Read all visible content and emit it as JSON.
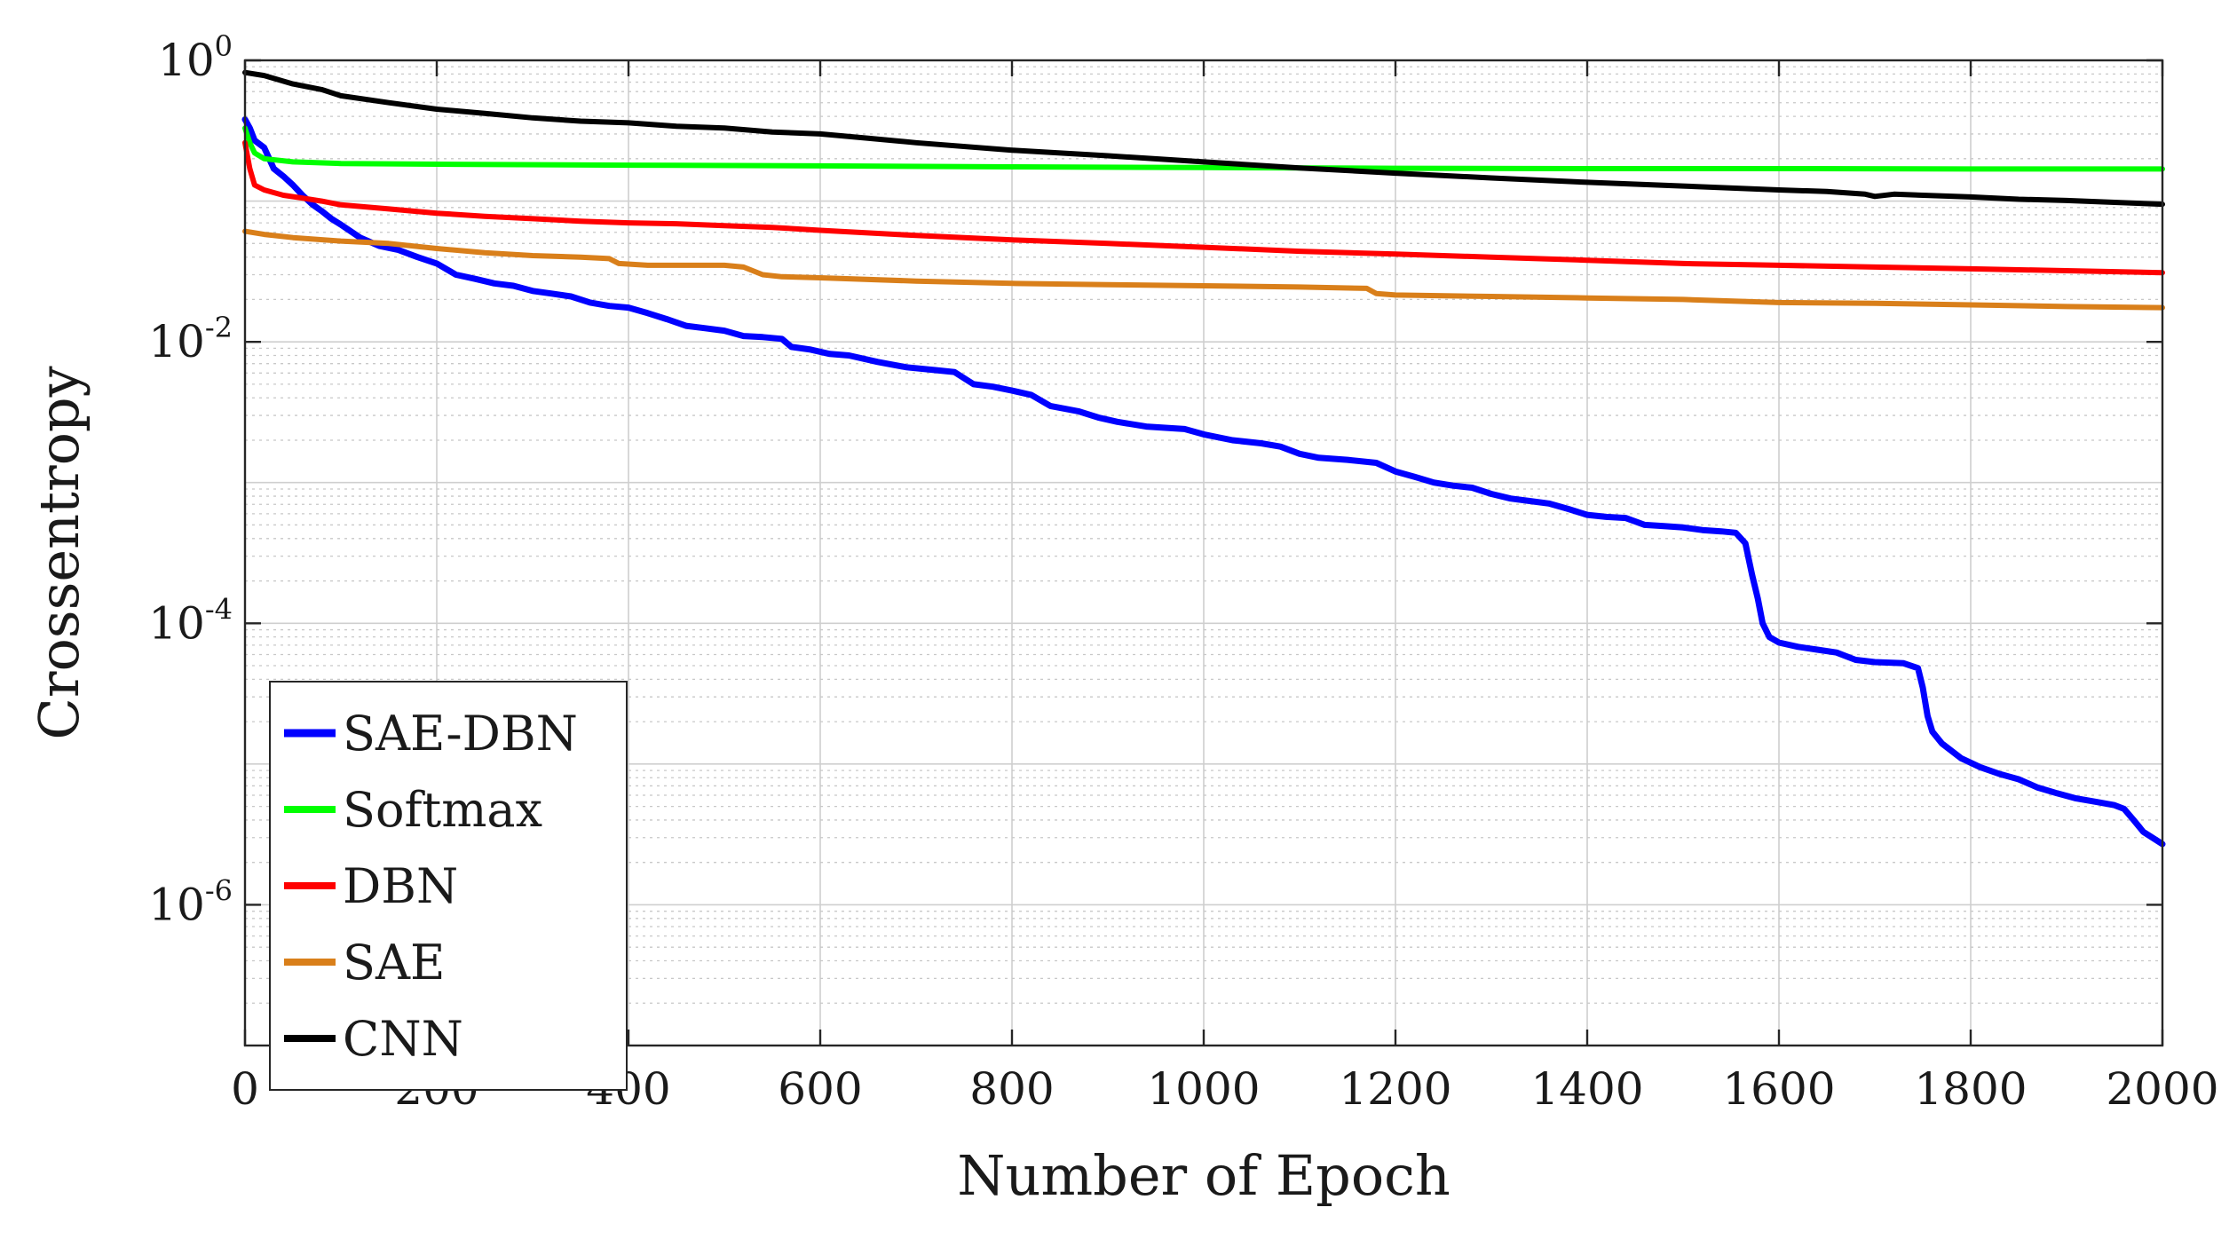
{
  "chart_data": {
    "type": "line",
    "title": "",
    "xlabel": "Number of Epoch",
    "ylabel": "Crossentropy",
    "xlim": [
      0,
      2000
    ],
    "ylim": [
      1e-07,
      1
    ],
    "yscale": "log",
    "grid": true,
    "legend_position": "bottom-left",
    "xticks": [
      0,
      200,
      400,
      600,
      800,
      1000,
      1200,
      1400,
      1600,
      1800,
      2000
    ],
    "xtick_labels": [
      "0",
      "200",
      "400",
      "600",
      "800",
      "1000",
      "1200",
      "1400",
      "1600",
      "1800",
      "2000"
    ],
    "yticks": [
      {
        "value": 1,
        "base": "10",
        "exp": "0"
      },
      {
        "value": 0.01,
        "base": "10",
        "exp": "-2"
      },
      {
        "value": 0.0001,
        "base": "10",
        "exp": "-4"
      },
      {
        "value": 1e-06,
        "base": "10",
        "exp": "-6"
      }
    ],
    "series": [
      {
        "name": "SAE-DBN",
        "color": "#0000ff",
        "width": 7,
        "points": [
          [
            0,
            0.38
          ],
          [
            5,
            0.33
          ],
          [
            10,
            0.27
          ],
          [
            20,
            0.24
          ],
          [
            30,
            0.17
          ],
          [
            40,
            0.15
          ],
          [
            50,
            0.13
          ],
          [
            60,
            0.11
          ],
          [
            70,
            0.095
          ],
          [
            80,
            0.085
          ],
          [
            90,
            0.075
          ],
          [
            100,
            0.068
          ],
          [
            120,
            0.055
          ],
          [
            140,
            0.048
          ],
          [
            160,
            0.045
          ],
          [
            180,
            0.04
          ],
          [
            200,
            0.036
          ],
          [
            220,
            0.03
          ],
          [
            240,
            0.028
          ],
          [
            260,
            0.026
          ],
          [
            280,
            0.025
          ],
          [
            300,
            0.023
          ],
          [
            320,
            0.022
          ],
          [
            340,
            0.021
          ],
          [
            360,
            0.019
          ],
          [
            380,
            0.018
          ],
          [
            400,
            0.0175
          ],
          [
            420,
            0.016
          ],
          [
            440,
            0.0145
          ],
          [
            460,
            0.013
          ],
          [
            480,
            0.0125
          ],
          [
            500,
            0.012
          ],
          [
            520,
            0.011
          ],
          [
            540,
            0.0108
          ],
          [
            560,
            0.0105
          ],
          [
            570,
            0.0092
          ],
          [
            590,
            0.0088
          ],
          [
            610,
            0.0082
          ],
          [
            630,
            0.008
          ],
          [
            660,
            0.0072
          ],
          [
            690,
            0.0066
          ],
          [
            720,
            0.0063
          ],
          [
            740,
            0.0061
          ],
          [
            760,
            0.005
          ],
          [
            780,
            0.0048
          ],
          [
            800,
            0.0045
          ],
          [
            820,
            0.0042
          ],
          [
            840,
            0.0035
          ],
          [
            870,
            0.0032
          ],
          [
            890,
            0.0029
          ],
          [
            910,
            0.0027
          ],
          [
            940,
            0.0025
          ],
          [
            980,
            0.0024
          ],
          [
            1000,
            0.0022
          ],
          [
            1030,
            0.002
          ],
          [
            1060,
            0.0019
          ],
          [
            1080,
            0.0018
          ],
          [
            1100,
            0.0016
          ],
          [
            1120,
            0.0015
          ],
          [
            1150,
            0.00145
          ],
          [
            1180,
            0.00138
          ],
          [
            1200,
            0.0012
          ],
          [
            1220,
            0.0011
          ],
          [
            1240,
            0.001
          ],
          [
            1260,
            0.00095
          ],
          [
            1280,
            0.00092
          ],
          [
            1300,
            0.00083
          ],
          [
            1320,
            0.00077
          ],
          [
            1340,
            0.00074
          ],
          [
            1360,
            0.00071
          ],
          [
            1380,
            0.00065
          ],
          [
            1400,
            0.00059
          ],
          [
            1420,
            0.00057
          ],
          [
            1440,
            0.00056
          ],
          [
            1460,
            0.0005
          ],
          [
            1480,
            0.00049
          ],
          [
            1500,
            0.00048
          ],
          [
            1520,
            0.00046
          ],
          [
            1540,
            0.00045
          ],
          [
            1555,
            0.00044
          ],
          [
            1565,
            0.00037
          ],
          [
            1572,
            0.00022
          ],
          [
            1578,
            0.00015
          ],
          [
            1583,
            0.0001
          ],
          [
            1590,
            8e-05
          ],
          [
            1600,
            7.3e-05
          ],
          [
            1620,
            6.8e-05
          ],
          [
            1640,
            6.5e-05
          ],
          [
            1660,
            6.2e-05
          ],
          [
            1680,
            5.5e-05
          ],
          [
            1700,
            5.3e-05
          ],
          [
            1730,
            5.2e-05
          ],
          [
            1745,
            4.8e-05
          ],
          [
            1750,
            3.5e-05
          ],
          [
            1755,
            2.2e-05
          ],
          [
            1760,
            1.7e-05
          ],
          [
            1770,
            1.4e-05
          ],
          [
            1790,
            1.1e-05
          ],
          [
            1810,
            9.5e-06
          ],
          [
            1830,
            8.5e-06
          ],
          [
            1850,
            7.8e-06
          ],
          [
            1870,
            6.8e-06
          ],
          [
            1890,
            6.2e-06
          ],
          [
            1910,
            5.7e-06
          ],
          [
            1930,
            5.4e-06
          ],
          [
            1950,
            5.1e-06
          ],
          [
            1960,
            4.8e-06
          ],
          [
            1970,
            4e-06
          ],
          [
            1980,
            3.3e-06
          ],
          [
            2000,
            2.7e-06
          ]
        ]
      },
      {
        "name": "Softmax",
        "color": "#00ff00",
        "width": 6,
        "points": [
          [
            0,
            0.33
          ],
          [
            5,
            0.26
          ],
          [
            10,
            0.22
          ],
          [
            20,
            0.2
          ],
          [
            50,
            0.19
          ],
          [
            100,
            0.185
          ],
          [
            200,
            0.183
          ],
          [
            400,
            0.18
          ],
          [
            600,
            0.178
          ],
          [
            800,
            0.175
          ],
          [
            1000,
            0.173
          ],
          [
            1200,
            0.171
          ],
          [
            1400,
            0.17
          ],
          [
            1600,
            0.17
          ],
          [
            1800,
            0.169
          ],
          [
            2000,
            0.169
          ]
        ]
      },
      {
        "name": "DBN",
        "color": "#ff0000",
        "width": 6,
        "points": [
          [
            0,
            0.26
          ],
          [
            5,
            0.17
          ],
          [
            10,
            0.13
          ],
          [
            20,
            0.12
          ],
          [
            40,
            0.11
          ],
          [
            60,
            0.105
          ],
          [
            80,
            0.1
          ],
          [
            100,
            0.094
          ],
          [
            150,
            0.088
          ],
          [
            200,
            0.082
          ],
          [
            250,
            0.078
          ],
          [
            300,
            0.075
          ],
          [
            350,
            0.072
          ],
          [
            400,
            0.07
          ],
          [
            450,
            0.069
          ],
          [
            500,
            0.067
          ],
          [
            550,
            0.065
          ],
          [
            600,
            0.062
          ],
          [
            700,
            0.057
          ],
          [
            800,
            0.053
          ],
          [
            900,
            0.05
          ],
          [
            1000,
            0.047
          ],
          [
            1100,
            0.044
          ],
          [
            1200,
            0.042
          ],
          [
            1300,
            0.04
          ],
          [
            1400,
            0.038
          ],
          [
            1500,
            0.036
          ],
          [
            1600,
            0.035
          ],
          [
            1700,
            0.034
          ],
          [
            1800,
            0.033
          ],
          [
            1900,
            0.032
          ],
          [
            2000,
            0.031
          ]
        ]
      },
      {
        "name": "SAE",
        "color": "#d97f1a",
        "width": 6,
        "points": [
          [
            0,
            0.061
          ],
          [
            20,
            0.058
          ],
          [
            50,
            0.055
          ],
          [
            100,
            0.052
          ],
          [
            150,
            0.05
          ],
          [
            200,
            0.046
          ],
          [
            250,
            0.043
          ],
          [
            300,
            0.041
          ],
          [
            350,
            0.04
          ],
          [
            380,
            0.039
          ],
          [
            390,
            0.036
          ],
          [
            420,
            0.035
          ],
          [
            500,
            0.035
          ],
          [
            520,
            0.034
          ],
          [
            540,
            0.03
          ],
          [
            560,
            0.029
          ],
          [
            600,
            0.0285
          ],
          [
            700,
            0.027
          ],
          [
            800,
            0.026
          ],
          [
            900,
            0.0255
          ],
          [
            1000,
            0.025
          ],
          [
            1100,
            0.0245
          ],
          [
            1170,
            0.024
          ],
          [
            1180,
            0.022
          ],
          [
            1200,
            0.0215
          ],
          [
            1300,
            0.021
          ],
          [
            1400,
            0.0205
          ],
          [
            1500,
            0.02
          ],
          [
            1600,
            0.019
          ],
          [
            1700,
            0.0188
          ],
          [
            1800,
            0.0183
          ],
          [
            1900,
            0.0178
          ],
          [
            2000,
            0.0175
          ]
        ]
      },
      {
        "name": "CNN",
        "color": "#000000",
        "width": 6,
        "points": [
          [
            0,
            0.82
          ],
          [
            20,
            0.78
          ],
          [
            50,
            0.68
          ],
          [
            80,
            0.62
          ],
          [
            100,
            0.56
          ],
          [
            150,
            0.5
          ],
          [
            200,
            0.45
          ],
          [
            250,
            0.42
          ],
          [
            300,
            0.39
          ],
          [
            350,
            0.37
          ],
          [
            400,
            0.36
          ],
          [
            450,
            0.34
          ],
          [
            500,
            0.33
          ],
          [
            550,
            0.31
          ],
          [
            600,
            0.3
          ],
          [
            650,
            0.28
          ],
          [
            700,
            0.26
          ],
          [
            800,
            0.23
          ],
          [
            900,
            0.21
          ],
          [
            1000,
            0.19
          ],
          [
            1100,
            0.172
          ],
          [
            1200,
            0.158
          ],
          [
            1300,
            0.146
          ],
          [
            1400,
            0.136
          ],
          [
            1500,
            0.128
          ],
          [
            1600,
            0.12
          ],
          [
            1650,
            0.117
          ],
          [
            1690,
            0.112
          ],
          [
            1700,
            0.108
          ],
          [
            1720,
            0.112
          ],
          [
            1800,
            0.107
          ],
          [
            1850,
            0.103
          ],
          [
            1900,
            0.101
          ],
          [
            1950,
            0.098
          ],
          [
            2000,
            0.095
          ]
        ]
      }
    ]
  }
}
